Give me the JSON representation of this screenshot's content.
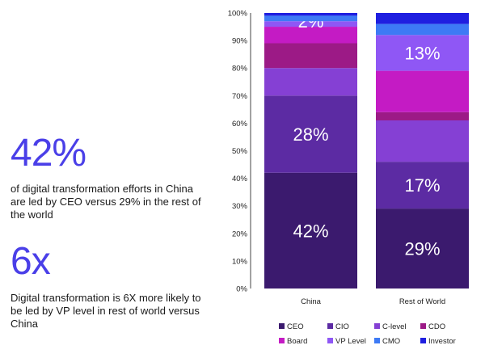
{
  "stats": [
    {
      "number": "42%",
      "description": "of digital transformation efforts in China are led by CEO versus 29% in the rest of the world",
      "color": "#4a3fe8"
    },
    {
      "number": "6x",
      "description": "Digital transformation is 6X more likely to be led by VP level in rest of world versus China",
      "color": "#4a3fe8"
    }
  ],
  "chart_data": {
    "type": "bar",
    "stacked": true,
    "categories": [
      "China",
      "Rest of World"
    ],
    "ylim": [
      0,
      100
    ],
    "yticks": [
      "0%",
      "10%",
      "20%",
      "30%",
      "40%",
      "50%",
      "60%",
      "70%",
      "80%",
      "90%",
      "100%"
    ],
    "series": [
      {
        "name": "CEO",
        "color": "#3b1a6e",
        "values": [
          42,
          29
        ],
        "labels": [
          "42%",
          "29%"
        ]
      },
      {
        "name": "CIO",
        "color": "#5c2ba3",
        "values": [
          28,
          17
        ],
        "labels": [
          "28%",
          "17%"
        ]
      },
      {
        "name": "C-level",
        "color": "#8540d4",
        "values": [
          10,
          15
        ],
        "labels": [
          "",
          ""
        ]
      },
      {
        "name": "CDO",
        "color": "#9c1a86",
        "values": [
          9,
          3
        ],
        "labels": [
          "",
          ""
        ]
      },
      {
        "name": "Board",
        "color": "#c41bc4",
        "values": [
          6,
          15
        ],
        "labels": [
          "",
          ""
        ]
      },
      {
        "name": "VP Level",
        "color": "#8f57f5",
        "values": [
          2,
          13
        ],
        "labels": [
          "2%",
          "13%"
        ]
      },
      {
        "name": "CMO",
        "color": "#3d7af5",
        "values": [
          2,
          4
        ],
        "labels": [
          "",
          ""
        ]
      },
      {
        "name": "Investor",
        "color": "#1f1fe0",
        "values": [
          1,
          4
        ],
        "labels": [
          "",
          ""
        ]
      }
    ],
    "legend_position": "bottom"
  }
}
